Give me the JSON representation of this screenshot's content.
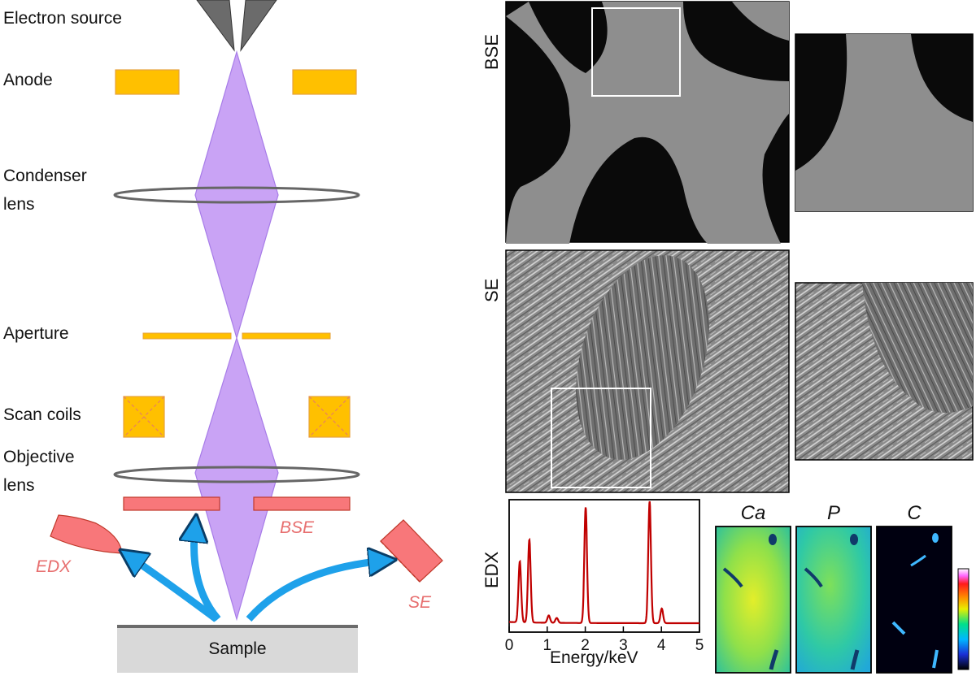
{
  "diagram": {
    "labels": {
      "electron_source": "Electron source",
      "anode": "Anode",
      "condenser_lens": "Condenser\nlens",
      "aperture": "Aperture",
      "scan_coils": "Scan coils",
      "objective_lens": "Objective\nlens",
      "sample": "Sample"
    },
    "detector_labels": {
      "bse": "BSE",
      "edx": "EDX",
      "se": "SE"
    },
    "colors": {
      "beam": "#c9a3f5",
      "beam_edge": "#a77ce8",
      "plate": "#ffc000",
      "plate_edge": "#e6a23c",
      "detector": "#f8777a",
      "detector_edge": "#c0392b",
      "arrow": "#1ea1ea",
      "sample": "#d9d9d9"
    }
  },
  "micrographs": {
    "row_labels": {
      "bse": "BSE",
      "se": "SE",
      "edx": "EDX"
    }
  },
  "chart_data": {
    "type": "line",
    "xlabel": "Energy/keV",
    "xlim": [
      0,
      5
    ],
    "x_ticks": [
      "0",
      "1",
      "2",
      "3",
      "4",
      "5"
    ],
    "series": [
      {
        "peaks": [
          {
            "x": 0.28,
            "y": 0.5
          },
          {
            "x": 0.53,
            "y": 0.68
          },
          {
            "x": 1.04,
            "y": 0.06
          },
          {
            "x": 1.25,
            "y": 0.04
          },
          {
            "x": 2.01,
            "y": 0.95
          },
          {
            "x": 3.69,
            "y": 1.0
          },
          {
            "x": 4.01,
            "y": 0.12
          }
        ]
      }
    ],
    "color": "#c00000"
  },
  "elemental_maps": {
    "labels": [
      "Ca",
      "P",
      "C"
    ]
  }
}
